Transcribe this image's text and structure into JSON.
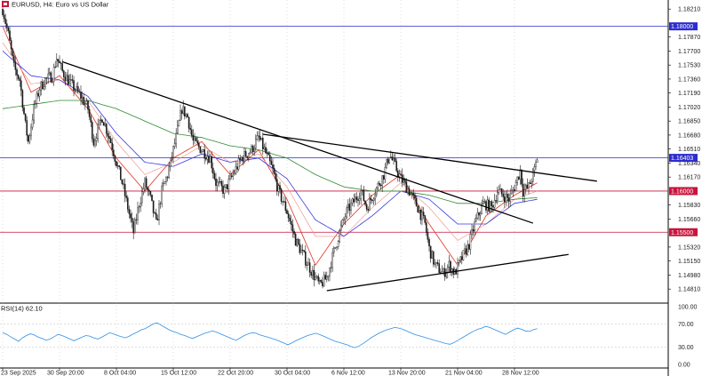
{
  "header": {
    "symbol_label": "EURUSD, H4:  Euro vs US Dollar"
  },
  "rsi": {
    "label": "RSI(14) 62.10",
    "levels": [
      "100.00",
      "70.00",
      "30.00",
      "0.00"
    ],
    "level_values": [
      100,
      70,
      30,
      0
    ],
    "series": [
      55,
      52,
      48,
      44,
      40,
      46,
      50,
      53,
      51,
      47,
      45,
      42,
      44,
      48,
      52,
      50,
      47,
      44,
      41,
      44,
      47,
      50,
      49,
      46,
      44,
      47,
      51,
      55,
      53,
      50,
      48,
      46,
      49,
      53,
      56,
      60,
      62,
      66,
      70,
      72,
      68,
      64,
      60,
      57,
      55,
      52,
      50,
      47,
      45,
      48,
      51,
      54,
      56,
      58,
      56,
      53,
      50,
      47,
      44,
      42,
      46,
      50,
      53,
      55,
      54,
      51,
      49,
      47,
      45,
      43,
      40,
      37,
      34,
      37,
      41,
      44,
      47,
      50,
      52,
      54,
      52,
      49,
      46,
      43,
      40,
      38,
      36,
      34,
      31,
      29,
      32,
      36,
      41,
      46,
      50,
      54,
      57,
      60,
      62,
      64,
      63,
      61,
      58,
      55,
      52,
      50,
      48,
      46,
      44,
      42,
      40,
      38,
      36,
      35,
      38,
      42,
      46,
      50,
      54,
      58,
      61,
      63,
      66,
      64,
      61,
      58,
      55,
      52,
      56,
      60,
      63,
      61,
      58,
      57,
      60,
      62
    ]
  },
  "price_axis": {
    "ticks": [
      "1.18210",
      "1.17870",
      "1.17700",
      "1.17530",
      "1.17360",
      "1.17190",
      "1.17020",
      "1.16850",
      "1.16680",
      "1.16510",
      "1.16340",
      "1.16170",
      "1.15830",
      "1.15660",
      "1.15320",
      "1.15150",
      "1.14980",
      "1.14810"
    ],
    "tick_values": [
      1.1821,
      1.1787,
      1.177,
      1.1753,
      1.1736,
      1.1719,
      1.1702,
      1.1685,
      1.1668,
      1.1651,
      1.1634,
      1.1617,
      1.1583,
      1.1566,
      1.1532,
      1.1515,
      1.1498,
      1.1481
    ],
    "range": [
      1.1465,
      1.1832
    ]
  },
  "time_axis": {
    "labels": [
      "23 Sep 2025",
      "30 Sep 20:00",
      "8 Oct 04:00",
      "15 Oct 12:00",
      "22 Oct 20:00",
      "30 Oct 04:00",
      "6 Nov 12:00",
      "13 Nov 20:00",
      "21 Nov 04:00",
      "28 Nov 12:00"
    ],
    "label_bars": [
      0,
      40,
      80,
      120,
      160,
      200,
      240,
      280,
      320,
      360
    ]
  },
  "levels": [
    {
      "label": "1.18000",
      "value": 1.18,
      "color": "#2c2ccf"
    },
    {
      "label": "1.16403",
      "value": 1.16403,
      "color": "#2c2ccf"
    },
    {
      "label": "1.16000",
      "value": 1.16,
      "color": "#c8143c"
    },
    {
      "label": "1.15500",
      "value": 1.155,
      "color": "#c8143c"
    }
  ],
  "trendlines": [
    {
      "start": {
        "bar": 42,
        "price": 1.1757
      },
      "end": {
        "bar": 373,
        "price": 1.1561
      }
    },
    {
      "start": {
        "bar": 183,
        "price": 1.1669
      },
      "end": {
        "bar": 418,
        "price": 1.1612
      }
    },
    {
      "start": {
        "bar": 228,
        "price": 1.1479
      },
      "end": {
        "bar": 398,
        "price": 1.1523
      }
    }
  ],
  "colors": {
    "bull_candle": "#1a1a1a",
    "bear_candle": "#1a1a1a",
    "ma_fast": "#e0301e",
    "ma_mid": "#3a3ae0",
    "ma_slow": "#2e8b2e",
    "ma_faint": "#f08a80",
    "rsi_line": "#2f8fe8",
    "trendline": "#000000",
    "grid_dash": "#bdbdbd"
  },
  "chart_data": {
    "type": "candlestick",
    "title": "EURUSD, H4:  Euro vs US Dollar",
    "ylim": [
      1.1465,
      1.1832
    ],
    "close_path": [
      [
        0,
        1.1821
      ],
      [
        4,
        1.179
      ],
      [
        8,
        1.175
      ],
      [
        12,
        1.1735
      ],
      [
        16,
        1.168
      ],
      [
        18,
        1.166
      ],
      [
        22,
        1.17
      ],
      [
        26,
        1.1725
      ],
      [
        30,
        1.1735
      ],
      [
        35,
        1.174
      ],
      [
        38,
        1.1762
      ],
      [
        42,
        1.1745
      ],
      [
        48,
        1.173
      ],
      [
        55,
        1.1715
      ],
      [
        60,
        1.17
      ],
      [
        64,
        1.166
      ],
      [
        70,
        1.169
      ],
      [
        76,
        1.166
      ],
      [
        80,
        1.1635
      ],
      [
        84,
        1.161
      ],
      [
        88,
        1.158
      ],
      [
        92,
        1.155
      ],
      [
        96,
        1.1585
      ],
      [
        100,
        1.161
      ],
      [
        104,
        1.159
      ],
      [
        108,
        1.156
      ],
      [
        112,
        1.16
      ],
      [
        116,
        1.162
      ],
      [
        122,
        1.1665
      ],
      [
        126,
        1.17
      ],
      [
        130,
        1.169
      ],
      [
        134,
        1.166
      ],
      [
        140,
        1.165
      ],
      [
        146,
        1.164
      ],
      [
        150,
        1.161
      ],
      [
        156,
        1.16
      ],
      [
        162,
        1.162
      ],
      [
        168,
        1.164
      ],
      [
        175,
        1.165
      ],
      [
        180,
        1.1665
      ],
      [
        184,
        1.165
      ],
      [
        190,
        1.1625
      ],
      [
        194,
        1.16
      ],
      [
        200,
        1.1575
      ],
      [
        206,
        1.154
      ],
      [
        212,
        1.152
      ],
      [
        218,
        1.15
      ],
      [
        223,
        1.1485
      ],
      [
        228,
        1.1495
      ],
      [
        232,
        1.152
      ],
      [
        237,
        1.155
      ],
      [
        242,
        1.1575
      ],
      [
        248,
        1.159
      ],
      [
        252,
        1.16
      ],
      [
        256,
        1.158
      ],
      [
        262,
        1.16
      ],
      [
        268,
        1.162
      ],
      [
        272,
        1.1645
      ],
      [
        276,
        1.163
      ],
      [
        280,
        1.1615
      ],
      [
        286,
        1.16
      ],
      [
        292,
        1.158
      ],
      [
        297,
        1.156
      ],
      [
        300,
        1.153
      ],
      [
        304,
        1.151
      ],
      [
        310,
        1.15
      ],
      [
        314,
        1.151
      ],
      [
        318,
        1.15
      ],
      [
        322,
        1.1515
      ],
      [
        328,
        1.1535
      ],
      [
        332,
        1.156
      ],
      [
        338,
        1.1585
      ],
      [
        344,
        1.158
      ],
      [
        348,
        1.16
      ],
      [
        352,
        1.1595
      ],
      [
        356,
        1.159
      ],
      [
        360,
        1.1605
      ],
      [
        364,
        1.1625
      ],
      [
        366,
        1.16
      ],
      [
        370,
        1.1605
      ],
      [
        374,
        1.1625
      ],
      [
        376,
        1.164
      ]
    ],
    "moving_averages": [
      {
        "name": "fast",
        "path": [
          [
            0,
            1.18
          ],
          [
            20,
            1.172
          ],
          [
            40,
            1.174
          ],
          [
            60,
            1.17
          ],
          [
            80,
            1.164
          ],
          [
            100,
            1.16
          ],
          [
            120,
            1.164
          ],
          [
            140,
            1.166
          ],
          [
            160,
            1.162
          ],
          [
            180,
            1.165
          ],
          [
            200,
            1.159
          ],
          [
            220,
            1.151
          ],
          [
            240,
            1.156
          ],
          [
            260,
            1.1595
          ],
          [
            280,
            1.162
          ],
          [
            300,
            1.156
          ],
          [
            320,
            1.151
          ],
          [
            340,
            1.157
          ],
          [
            360,
            1.1595
          ],
          [
            376,
            1.161
          ]
        ]
      },
      {
        "name": "faint",
        "path": [
          [
            0,
            1.178
          ],
          [
            20,
            1.173
          ],
          [
            40,
            1.1735
          ],
          [
            60,
            1.171
          ],
          [
            80,
            1.166
          ],
          [
            100,
            1.162
          ],
          [
            120,
            1.1635
          ],
          [
            140,
            1.1655
          ],
          [
            160,
            1.1635
          ],
          [
            180,
            1.1645
          ],
          [
            200,
            1.1605
          ],
          [
            220,
            1.1545
          ],
          [
            240,
            1.1545
          ],
          [
            260,
            1.158
          ],
          [
            280,
            1.161
          ],
          [
            300,
            1.158
          ],
          [
            320,
            1.154
          ],
          [
            340,
            1.156
          ],
          [
            360,
            1.159
          ],
          [
            376,
            1.16
          ]
        ]
      },
      {
        "name": "mid",
        "path": [
          [
            0,
            1.177
          ],
          [
            20,
            1.174
          ],
          [
            40,
            1.1735
          ],
          [
            60,
            1.1715
          ],
          [
            80,
            1.167
          ],
          [
            100,
            1.1635
          ],
          [
            120,
            1.163
          ],
          [
            140,
            1.1645
          ],
          [
            160,
            1.1635
          ],
          [
            180,
            1.164
          ],
          [
            200,
            1.1615
          ],
          [
            220,
            1.1565
          ],
          [
            240,
            1.1545
          ],
          [
            260,
            1.157
          ],
          [
            280,
            1.16
          ],
          [
            300,
            1.159
          ],
          [
            320,
            1.156
          ],
          [
            340,
            1.156
          ],
          [
            360,
            1.1585
          ],
          [
            376,
            1.159
          ]
        ]
      },
      {
        "name": "slow",
        "path": [
          [
            0,
            1.17
          ],
          [
            20,
            1.1705
          ],
          [
            40,
            1.171
          ],
          [
            60,
            1.171
          ],
          [
            80,
            1.17
          ],
          [
            100,
            1.1685
          ],
          [
            120,
            1.167
          ],
          [
            140,
            1.1665
          ],
          [
            160,
            1.1655
          ],
          [
            180,
            1.165
          ],
          [
            200,
            1.164
          ],
          [
            220,
            1.162
          ],
          [
            240,
            1.1605
          ],
          [
            260,
            1.16
          ],
          [
            280,
            1.16
          ],
          [
            300,
            1.1595
          ],
          [
            320,
            1.1585
          ],
          [
            340,
            1.1585
          ],
          [
            360,
            1.159
          ],
          [
            376,
            1.1592
          ]
        ]
      }
    ]
  }
}
